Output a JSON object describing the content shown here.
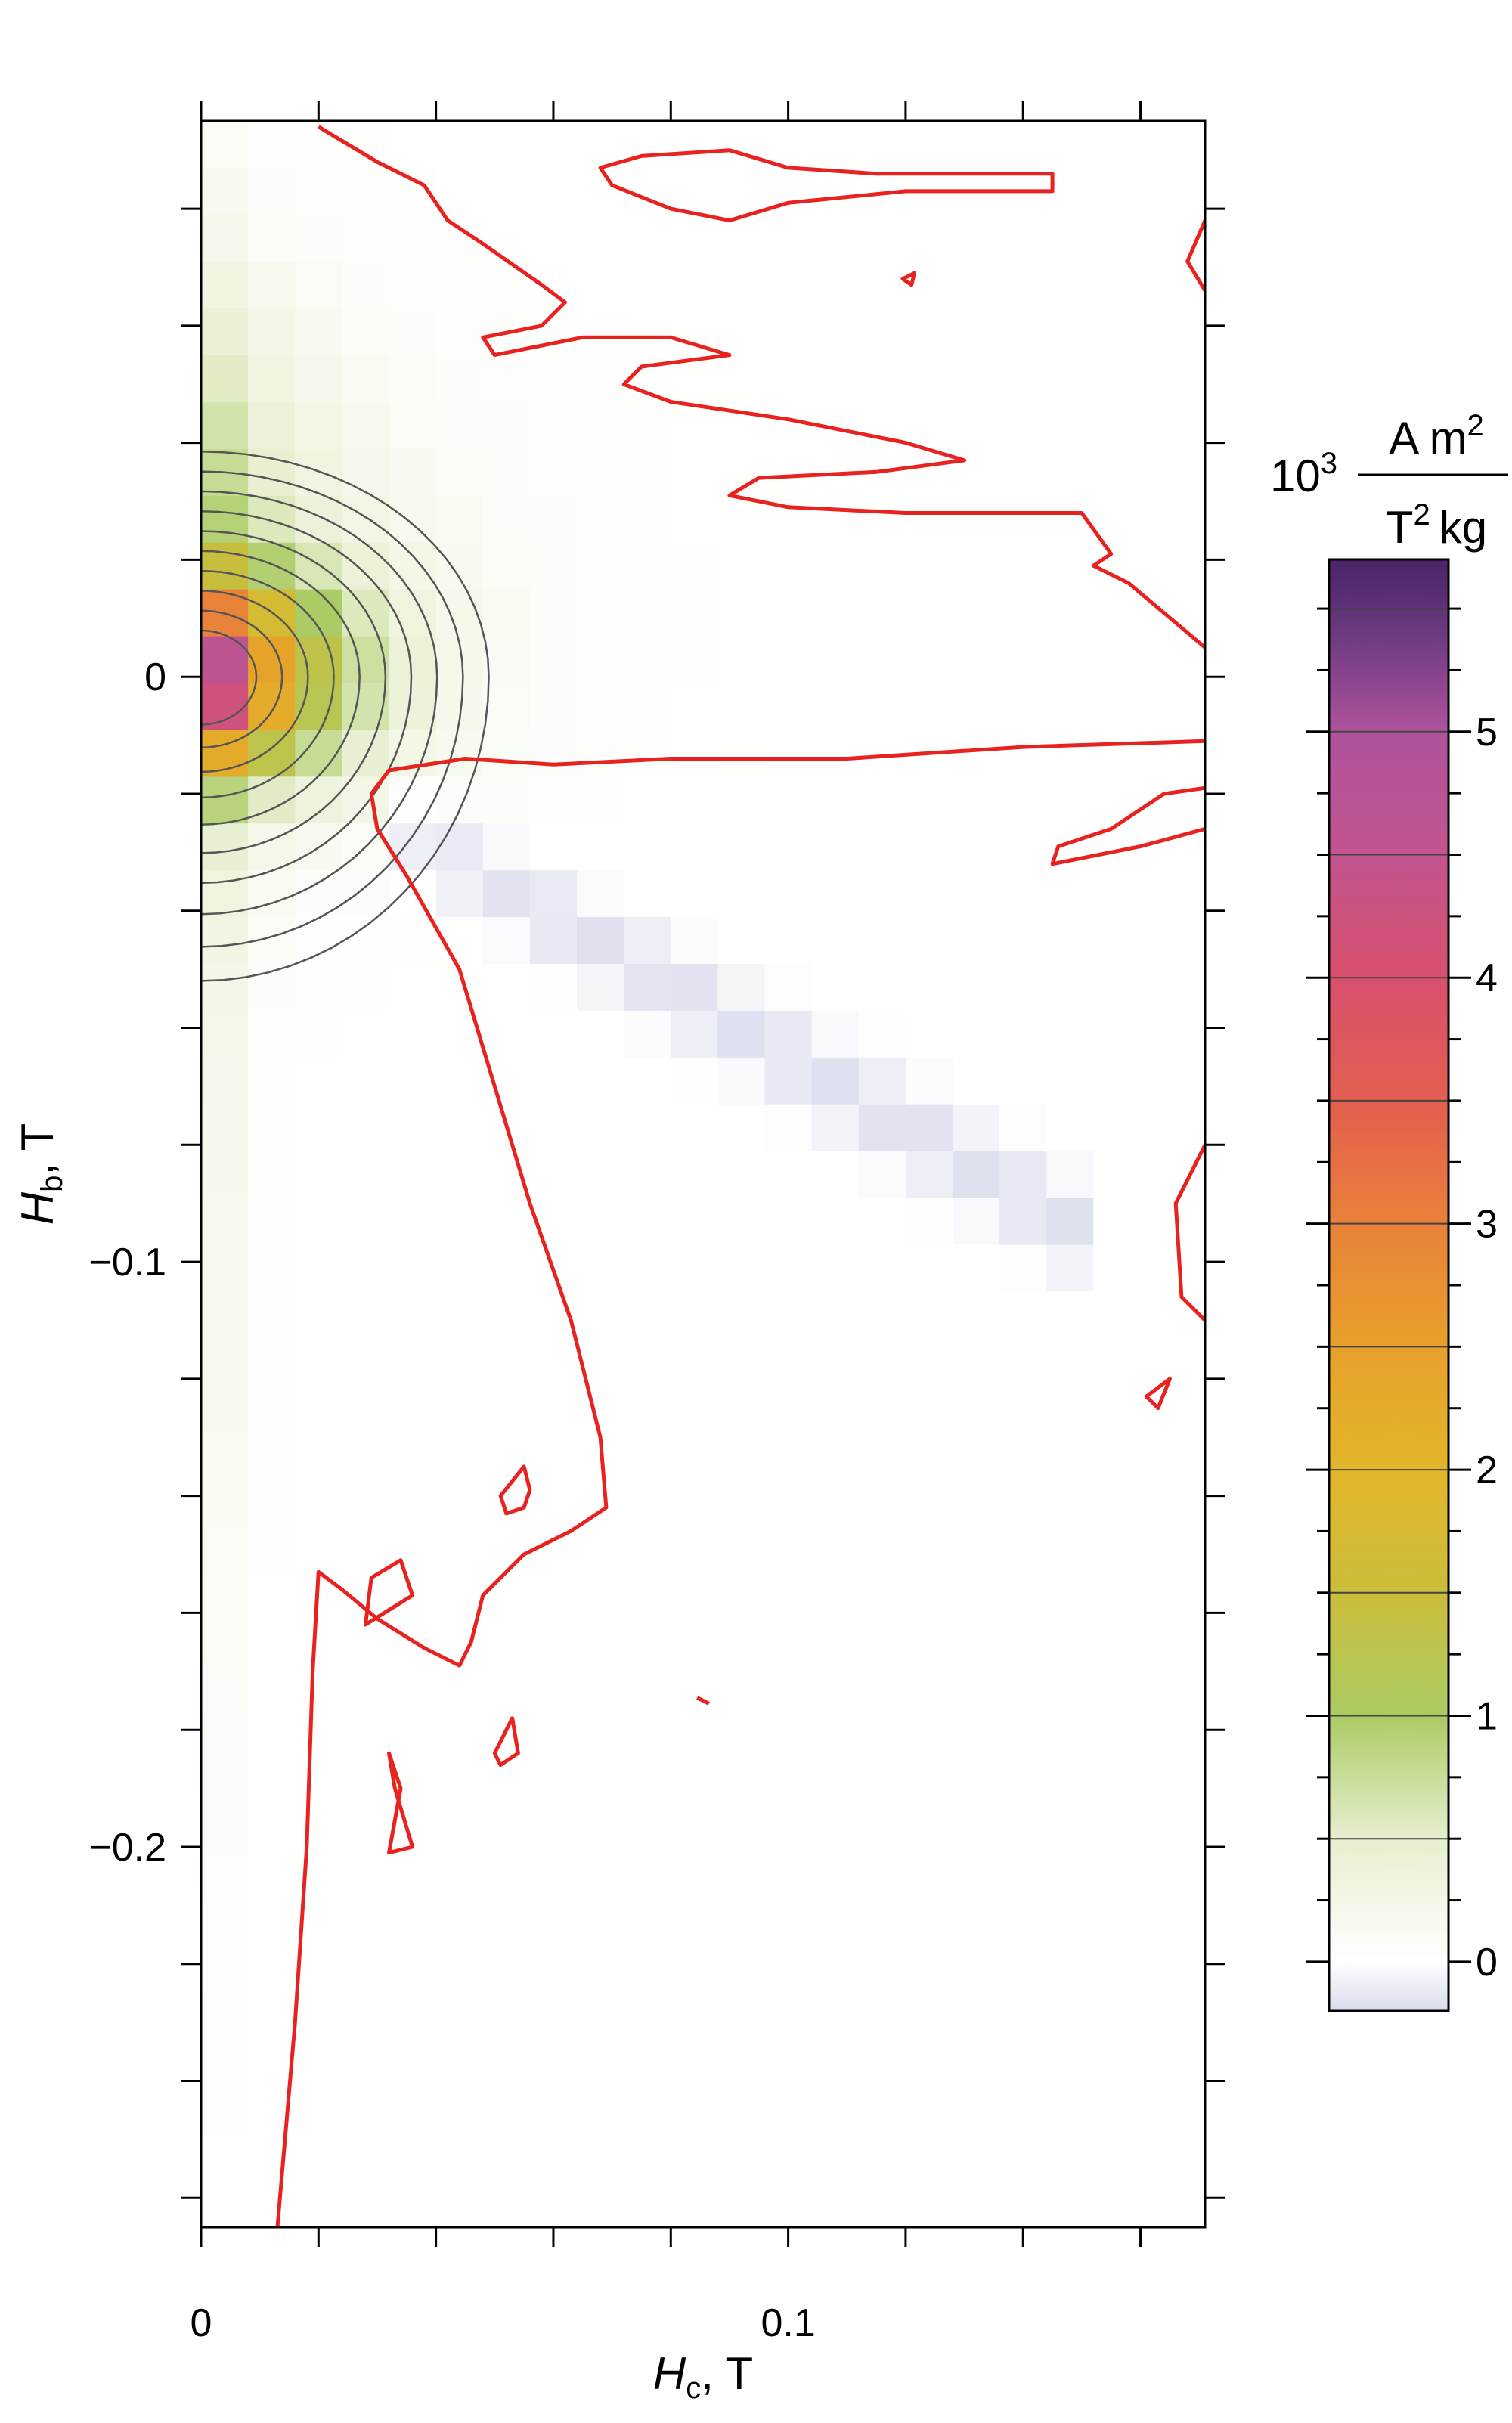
{
  "chart_data": {
    "type": "heatmap",
    "title": "",
    "xlabel": {
      "symbol": "H",
      "sub": "c",
      "unit": "T"
    },
    "ylabel": {
      "symbol": "H",
      "sub": "b",
      "unit": "T"
    },
    "xlim": [
      0,
      0.171
    ],
    "ylim": [
      -0.265,
      0.095
    ],
    "x_tick_labels": [
      {
        "value": 0,
        "label": "0"
      },
      {
        "value": 0.1,
        "label": "0.1"
      }
    ],
    "y_tick_labels": [
      {
        "value": 0,
        "label": "0"
      },
      {
        "value": -0.1,
        "label": "−0.1"
      },
      {
        "value": -0.2,
        "label": "−0.2"
      }
    ],
    "x_tick_step": 0.02,
    "y_tick_step": 0.02,
    "grid": false,
    "heatmap": {
      "cell_size_T": 0.008,
      "x_extent": [
        0,
        0.171
      ],
      "y_extent": [
        -0.265,
        0.095
      ],
      "colormap": [
        {
          "value": -0.25,
          "color": "#d9dcec"
        },
        {
          "value": 0.0,
          "color": "#ffffff"
        },
        {
          "value": 0.5,
          "color": "#e6efcf"
        },
        {
          "value": 1.0,
          "color": "#abcb64"
        },
        {
          "value": 1.5,
          "color": "#cbbd3a"
        },
        {
          "value": 2.0,
          "color": "#e2b62a"
        },
        {
          "value": 2.5,
          "color": "#e7a02a"
        },
        {
          "value": 3.0,
          "color": "#e9813a"
        },
        {
          "value": 3.5,
          "color": "#e35e4f"
        },
        {
          "value": 4.0,
          "color": "#d8506e"
        },
        {
          "value": 4.5,
          "color": "#c2548e"
        },
        {
          "value": 5.0,
          "color": "#ae539d"
        },
        {
          "value": 5.4,
          "color": "#6b3a80"
        },
        {
          "value": 5.7,
          "color": "#4a2366"
        }
      ]
    },
    "colorbar": {
      "placement": "right",
      "range": [
        -0.2,
        5.7
      ],
      "exponent_label": "10",
      "exponent": "3",
      "unit_numerator": "A m",
      "unit_numerator_power": "2",
      "unit_denominator_T": "T",
      "unit_denominator_power": "2",
      "unit_denominator_kg": "kg",
      "tick_labels": [
        {
          "value": 0,
          "label": "0"
        },
        {
          "value": 1,
          "label": "1"
        },
        {
          "value": 2,
          "label": "2"
        },
        {
          "value": 3,
          "label": "3"
        },
        {
          "value": 4,
          "label": "4"
        },
        {
          "value": 5,
          "label": "5"
        }
      ],
      "minor_step": 0.25,
      "contour_levels": [
        0.5,
        1.0,
        1.5,
        2.0,
        2.5,
        3.0,
        3.5,
        4.0,
        4.5,
        5.0
      ]
    },
    "contours": {
      "red_level": 0,
      "red_color": "#e8221f",
      "gray_color": "#555555"
    }
  }
}
